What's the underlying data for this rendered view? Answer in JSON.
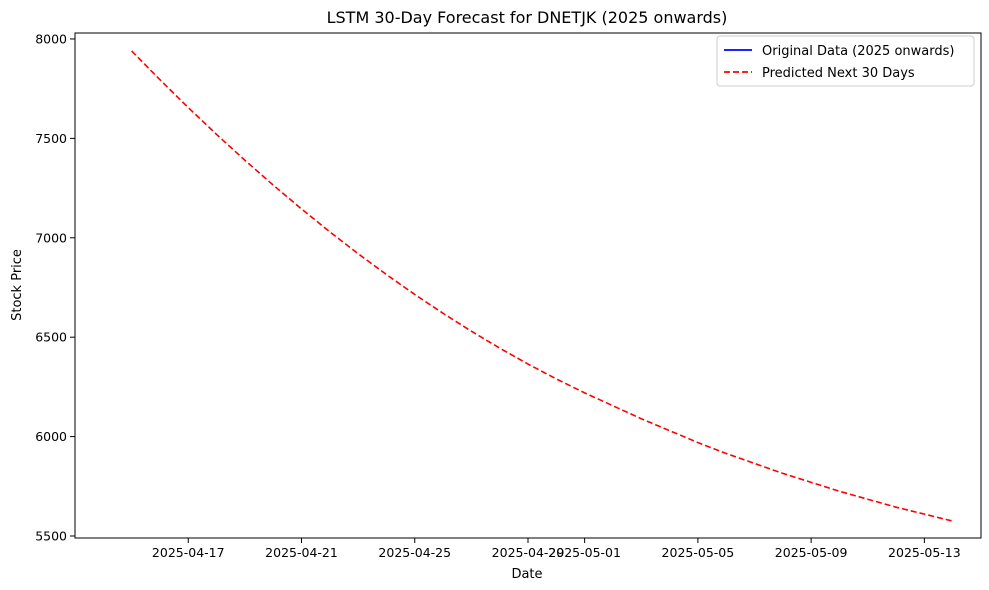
{
  "chart_data": {
    "type": "line",
    "title": "LSTM 30-Day Forecast for DNETJK (2025 onwards)",
    "xlabel": "Date",
    "ylabel": "Stock Price",
    "xlim": [
      "2025-04-13",
      "2025-05-15"
    ],
    "ylim": [
      5490,
      8030
    ],
    "xticks": [
      "2025-04-17",
      "2025-04-21",
      "2025-04-25",
      "2025-04-29",
      "2025-05-01",
      "2025-05-05",
      "2025-05-09",
      "2025-05-13"
    ],
    "yticks": [
      5500,
      6000,
      6500,
      7000,
      7500,
      8000
    ],
    "grid": false,
    "legend_position": "top-right",
    "series": [
      {
        "name": "Original Data (2025 onwards)",
        "color": "#0000ff",
        "style": "solid",
        "x": [],
        "y": []
      },
      {
        "name": "Predicted Next 30 Days",
        "color": "#ff0000",
        "style": "dashed",
        "x": [
          "2025-04-15",
          "2025-04-16",
          "2025-04-17",
          "2025-04-18",
          "2025-04-19",
          "2025-04-20",
          "2025-04-21",
          "2025-04-22",
          "2025-04-23",
          "2025-04-24",
          "2025-04-25",
          "2025-04-26",
          "2025-04-27",
          "2025-04-28",
          "2025-04-29",
          "2025-04-30",
          "2025-05-01",
          "2025-05-02",
          "2025-05-03",
          "2025-05-04",
          "2025-05-05",
          "2025-05-06",
          "2025-05-07",
          "2025-05-08",
          "2025-05-09",
          "2025-05-10",
          "2025-05-11",
          "2025-05-12",
          "2025-05-13",
          "2025-05-14"
        ],
        "y": [
          7940,
          7795,
          7655,
          7520,
          7390,
          7265,
          7145,
          7030,
          6920,
          6815,
          6715,
          6620,
          6530,
          6445,
          6365,
          6290,
          6220,
          6155,
          6090,
          6030,
          5970,
          5915,
          5865,
          5815,
          5770,
          5725,
          5685,
          5645,
          5610,
          5575
        ]
      }
    ]
  }
}
